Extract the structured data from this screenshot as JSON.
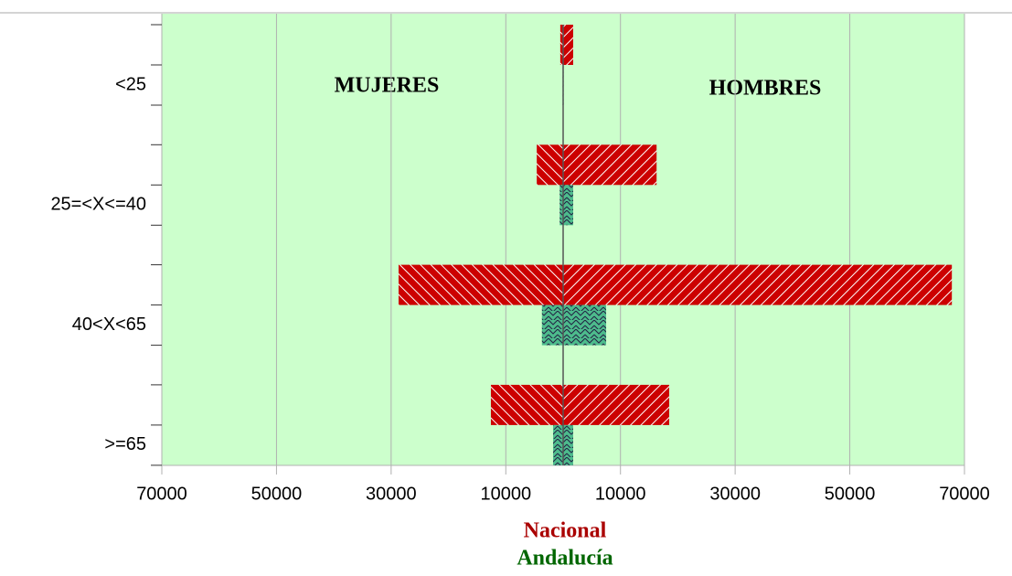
{
  "chart_data": {
    "type": "pyramid",
    "categories": [
      "<25",
      "25=<X<=40",
      "40<X<65",
      ">=65"
    ],
    "annotations": [
      "MUJERES",
      "HOMBRES"
    ],
    "series": [
      {
        "name": "Nacional",
        "color": "#cc0000",
        "mujeres": [
          -500,
          -4600,
          -28700,
          -12600
        ],
        "hombres": [
          1750,
          16300,
          67800,
          18500
        ]
      },
      {
        "name": "Andalucía",
        "color": "#4dbb8c",
        "mujeres": [
          -100,
          -600,
          -3700,
          -1750
        ],
        "hombres": [
          100,
          1750,
          7500,
          1750
        ]
      }
    ],
    "legend_colors": [
      "#aa0000",
      "#006600"
    ],
    "xlim": [
      -70000,
      70000
    ],
    "xticks": [
      {
        "value": -70000,
        "label": "70000"
      },
      {
        "value": -50000,
        "label": "50000"
      },
      {
        "value": -30000,
        "label": "30000"
      },
      {
        "value": -10000,
        "label": "10000"
      },
      10000,
      30000,
      50000,
      70000
    ],
    "background": "#ccffcc",
    "grid": true
  }
}
